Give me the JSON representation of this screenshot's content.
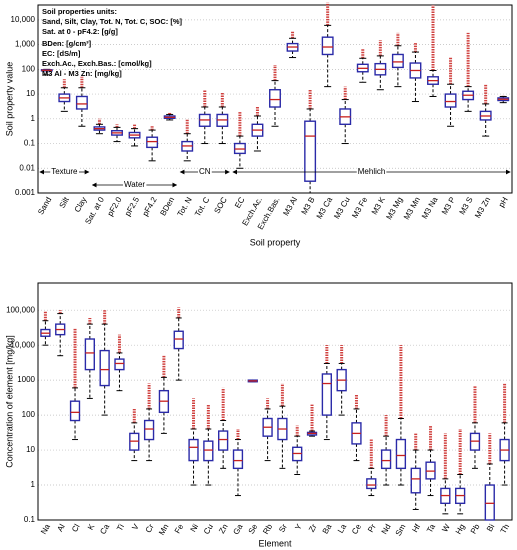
{
  "chart_data": [
    {
      "type": "box",
      "x_label": "Soil property",
      "y_label": "Soil property value",
      "log_y": true,
      "grid": true,
      "box_color": "#2a2aa8",
      "outlier_color": "#c8201e",
      "units_note": [
        "Soil properties units:",
        "Sand, Silt, Clay, Tot. N, Tot. C, SOC: [%]",
        "Sat. at 0 - pF4.2: [g/g]",
        "BDen: [g/cm³]",
        "EC: [dS/m]",
        "Exch.Ac., Exch.Bas.: [cmol/kg]",
        "M3 Al - M3 Zn: [mg/kg]"
      ],
      "groups": [
        "Texture",
        "Water",
        "CN",
        "Mehlich"
      ],
      "categories": [
        "Sand",
        "Silt",
        "Clay",
        "Sat. at 0",
        "pF2.0",
        "pF2.5",
        "pF4.2",
        "BDen",
        "Tot. N",
        "Tot. C",
        "SOC",
        "EC",
        "Exch.Ac.",
        "Exch.Bas.",
        "M3 Al",
        "M3 B",
        "M3 Ca",
        "M3 Cu",
        "M3 Fe",
        "M3 K",
        "M3 Mg",
        "M3 Mn",
        "M3 Na",
        "M3 P",
        "M3 S",
        "M3 Zn",
        "pH"
      ],
      "whisker_low": [
        60,
        2,
        0.5,
        0.25,
        0.12,
        0.08,
        0.02,
        0.9,
        0.02,
        0.1,
        0.1,
        0.01,
        0.05,
        0.5,
        300,
        0.001,
        20,
        0.1,
        30,
        15,
        20,
        5,
        8,
        0.5,
        2,
        0.2,
        4.5
      ],
      "q1": [
        88,
        5,
        2.5,
        0.35,
        0.22,
        0.17,
        0.07,
        1.05,
        0.05,
        0.5,
        0.5,
        0.04,
        0.2,
        3,
        550,
        0.003,
        400,
        0.6,
        80,
        60,
        120,
        45,
        25,
        3,
        6,
        0.9,
        5.5
      ],
      "median": [
        92,
        7,
        4,
        0.4,
        0.27,
        0.22,
        0.12,
        1.15,
        0.08,
        0.9,
        0.9,
        0.06,
        0.35,
        6,
        800,
        0.2,
        800,
        1.2,
        110,
        100,
        200,
        90,
        35,
        5,
        9,
        1.3,
        6.2
      ],
      "q3": [
        96,
        10,
        8,
        0.47,
        0.33,
        0.28,
        0.18,
        1.3,
        0.12,
        1.5,
        1.5,
        0.1,
        0.6,
        15,
        1100,
        0.8,
        2000,
        2.5,
        160,
        170,
        400,
        180,
        50,
        10,
        13,
        2,
        7
      ],
      "whisker_high": [
        100,
        18,
        18,
        0.6,
        0.45,
        0.4,
        0.35,
        1.5,
        0.25,
        3,
        3,
        0.2,
        1.3,
        35,
        1800,
        2.5,
        6000,
        6,
        280,
        350,
        900,
        500,
        90,
        25,
        20,
        4,
        8
      ],
      "outlier_max": [
        100,
        40,
        50,
        1,
        0.6,
        0.6,
        0.5,
        1.8,
        1,
        15,
        12,
        2,
        3,
        150,
        3500,
        15,
        50000,
        20,
        700,
        1500,
        3000,
        1200,
        40000,
        300,
        3000,
        25,
        8.5
      ],
      "ylim": [
        0.001,
        40000
      ],
      "yticks": [
        0.001,
        0.01,
        0.1,
        1,
        10,
        100,
        {
          "value": 1000,
          "label": "1,000"
        },
        {
          "value": 10000,
          "label": "10,000"
        }
      ]
    },
    {
      "type": "box",
      "x_label": "Element",
      "y_label": "Concentration of element [mg/kg]",
      "log_y": true,
      "grid": true,
      "box_color": "#2a2aa8",
      "outlier_color": "#c8201e",
      "categories": [
        "Na",
        "Al",
        "Cl",
        "K",
        "Ca",
        "Ti",
        "V",
        "Cr",
        "Mn",
        "Fe",
        "Ni",
        "Cu",
        "Zn",
        "Ga",
        "Se",
        "Rb",
        "Sr",
        "Y",
        "Zr",
        "Ba",
        "La",
        "Ce",
        "Pr",
        "Nd",
        "Sm",
        "Hf",
        "Ta",
        "W",
        "Hg",
        "Pb",
        "Bi",
        "Th"
      ],
      "whisker_low": [
        10000,
        5000,
        20,
        300,
        100,
        500,
        5,
        5,
        30,
        1000,
        1,
        1,
        3,
        0.5,
        900,
        5,
        3,
        2,
        25,
        20,
        100,
        5,
        0.5,
        1,
        1,
        0.2,
        0.5,
        0.15,
        0.15,
        3,
        0.1,
        1
      ],
      "q1": [
        18000,
        20000,
        70,
        2000,
        700,
        2000,
        10,
        20,
        120,
        8000,
        5,
        5,
        10,
        3,
        900,
        25,
        20,
        5,
        27,
        100,
        500,
        15,
        0.8,
        3,
        3,
        0.6,
        1.5,
        0.3,
        0.3,
        10,
        0.1,
        5
      ],
      "median": [
        22000,
        28000,
        120,
        6000,
        2000,
        3000,
        18,
        40,
        250,
        15000,
        12,
        10,
        20,
        5,
        950,
        45,
        40,
        8,
        30,
        800,
        1000,
        30,
        1,
        5,
        7,
        1.5,
        2.5,
        0.5,
        0.5,
        18,
        0.3,
        10
      ],
      "q3": [
        28000,
        40000,
        250,
        15000,
        7000,
        4000,
        30,
        70,
        500,
        25000,
        20,
        18,
        35,
        10,
        1000,
        80,
        80,
        12,
        32,
        1500,
        2000,
        60,
        1.5,
        10,
        20,
        3,
        4.5,
        0.8,
        0.8,
        30,
        1,
        20
      ],
      "whisker_high": [
        50000,
        80000,
        600,
        40000,
        40000,
        6000,
        60,
        150,
        1200,
        60000,
        40,
        40,
        70,
        20,
        1000,
        150,
        180,
        25,
        35,
        3000,
        3000,
        150,
        3,
        25,
        80,
        10,
        10,
        1.5,
        2,
        60,
        4,
        60
      ],
      "outlier_max": [
        90000,
        100000,
        30000,
        60000,
        100000,
        20000,
        150,
        800,
        5000,
        120000,
        300,
        200,
        600,
        40,
        1000,
        300,
        800,
        50,
        200,
        10000,
        10000,
        400,
        20,
        100,
        10000,
        30,
        50,
        30,
        40,
        700,
        30,
        800
      ],
      "ylim": [
        0.1,
        600000
      ],
      "yticks": [
        0.1,
        1,
        10,
        100,
        1000,
        {
          "value": 10000,
          "label": "10,000"
        },
        {
          "value": 100000,
          "label": "100,000"
        }
      ]
    }
  ]
}
